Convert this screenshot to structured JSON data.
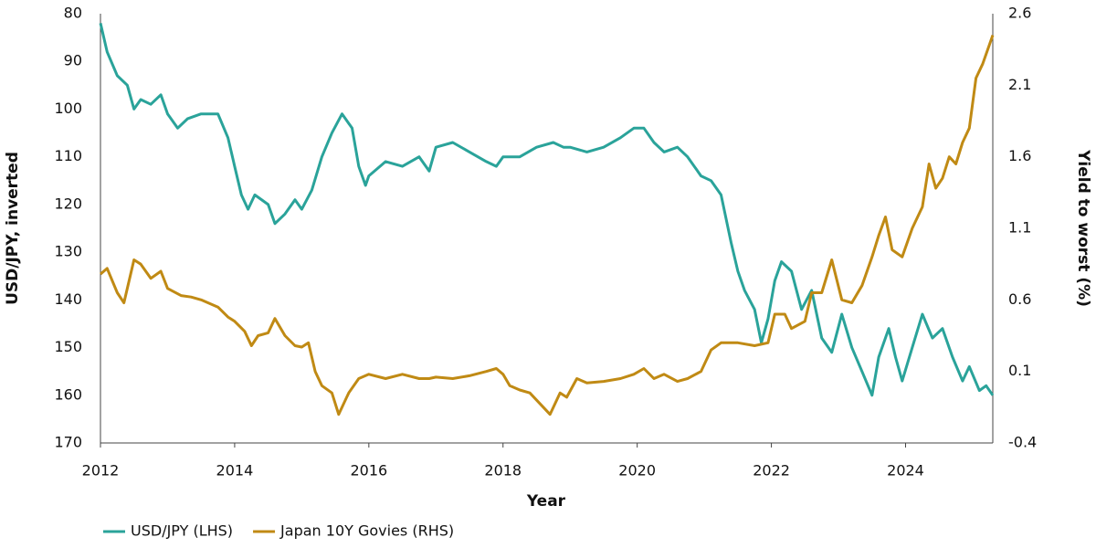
{
  "chart_data": {
    "type": "line",
    "x_label": "Year",
    "y_label": "USD/JPY, inverted",
    "y2_label": "Yield to worst (%)",
    "xlim": [
      2012,
      2025.3
    ],
    "xticks": [
      2012,
      2014,
      2016,
      2018,
      2020,
      2022,
      2024
    ],
    "ylim": [
      170,
      80
    ],
    "yticks": [
      80,
      90,
      100,
      110,
      120,
      130,
      140,
      150,
      160,
      170
    ],
    "y2lim": [
      -0.4,
      2.6
    ],
    "y2ticks": [
      -0.4,
      0.1,
      0.6,
      1.1,
      1.6,
      2.1,
      2.6
    ],
    "legend": "bottom-left",
    "series": [
      {
        "name": "USD/JPY (LHS)",
        "color": "#2aa39a",
        "x": [
          2012.0,
          2012.1,
          2012.25,
          2012.4,
          2012.5,
          2012.6,
          2012.75,
          2012.9,
          2013.0,
          2013.15,
          2013.3,
          2013.5,
          2013.75,
          2013.9,
          2014.0,
          2014.1,
          2014.2,
          2014.3,
          2014.5,
          2014.6,
          2014.75,
          2014.9,
          2015.0,
          2015.15,
          2015.3,
          2015.45,
          2015.6,
          2015.75,
          2015.85,
          2015.95,
          2016.0,
          2016.25,
          2016.5,
          2016.75,
          2016.9,
          2017.0,
          2017.25,
          2017.5,
          2017.75,
          2017.9,
          2018.0,
          2018.25,
          2018.5,
          2018.75,
          2018.9,
          2019.0,
          2019.25,
          2019.5,
          2019.75,
          2019.95,
          2020.1,
          2020.25,
          2020.4,
          2020.6,
          2020.75,
          2020.95,
          2021.1,
          2021.25,
          2021.4,
          2021.5,
          2021.6,
          2021.75,
          2021.85,
          2021.95,
          2022.05,
          2022.15,
          2022.3,
          2022.45,
          2022.6,
          2022.75,
          2022.9,
          2023.05,
          2023.2,
          2023.35,
          2023.5,
          2023.6,
          2023.75,
          2023.85,
          2023.95,
          2024.1,
          2024.25,
          2024.4,
          2024.55,
          2024.7,
          2024.85,
          2024.95,
          2025.1,
          2025.2,
          2025.3
        ],
        "values": [
          82,
          88,
          93,
          95,
          100,
          98,
          99,
          97,
          101,
          104,
          102,
          101,
          101,
          106,
          112,
          118,
          121,
          118,
          120,
          124,
          122,
          119,
          121,
          117,
          110,
          105,
          101,
          104,
          112,
          116,
          114,
          111,
          112,
          110,
          113,
          108,
          107,
          109,
          111,
          112,
          110,
          110,
          108,
          107,
          108,
          108,
          109,
          108,
          106,
          104,
          104,
          107,
          109,
          108,
          110,
          114,
          115,
          118,
          128,
          134,
          138,
          142,
          149,
          144,
          136,
          132,
          134,
          142,
          138,
          148,
          151,
          143,
          150,
          155,
          160,
          152,
          146,
          152,
          157,
          150,
          143,
          148,
          146,
          152,
          157,
          154,
          159,
          158,
          160
        ]
      },
      {
        "name": "Japan 10Y Govies (RHS)",
        "color": "#c08a14",
        "axis": "y2",
        "x": [
          2012.0,
          2012.1,
          2012.25,
          2012.35,
          2012.5,
          2012.6,
          2012.75,
          2012.9,
          2013.0,
          2013.2,
          2013.35,
          2013.5,
          2013.75,
          2013.9,
          2014.0,
          2014.15,
          2014.25,
          2014.35,
          2014.5,
          2014.6,
          2014.75,
          2014.9,
          2015.0,
          2015.1,
          2015.2,
          2015.3,
          2015.45,
          2015.55,
          2015.7,
          2015.85,
          2016.0,
          2016.25,
          2016.5,
          2016.75,
          2016.9,
          2017.0,
          2017.25,
          2017.5,
          2017.75,
          2017.9,
          2018.0,
          2018.1,
          2018.25,
          2018.4,
          2018.6,
          2018.7,
          2018.85,
          2018.95,
          2019.1,
          2019.25,
          2019.5,
          2019.75,
          2019.95,
          2020.1,
          2020.25,
          2020.4,
          2020.6,
          2020.75,
          2020.95,
          2021.1,
          2021.25,
          2021.5,
          2021.75,
          2021.95,
          2022.05,
          2022.2,
          2022.3,
          2022.5,
          2022.6,
          2022.75,
          2022.9,
          2023.05,
          2023.2,
          2023.35,
          2023.5,
          2023.6,
          2023.7,
          2023.8,
          2023.95,
          2024.1,
          2024.25,
          2024.35,
          2024.45,
          2024.55,
          2024.65,
          2024.75,
          2024.85,
          2024.95,
          2025.05,
          2025.15,
          2025.3
        ],
        "values": [
          0.78,
          0.82,
          0.65,
          0.58,
          0.88,
          0.85,
          0.75,
          0.8,
          0.68,
          0.63,
          0.62,
          0.6,
          0.55,
          0.48,
          0.45,
          0.38,
          0.28,
          0.35,
          0.37,
          0.47,
          0.35,
          0.28,
          0.27,
          0.3,
          0.1,
          0.0,
          -0.05,
          -0.2,
          -0.05,
          0.05,
          0.08,
          0.05,
          0.08,
          0.05,
          0.05,
          0.06,
          0.05,
          0.07,
          0.1,
          0.12,
          0.08,
          0.0,
          -0.03,
          -0.05,
          -0.15,
          -0.2,
          -0.05,
          -0.08,
          0.05,
          0.02,
          0.03,
          0.05,
          0.08,
          0.12,
          0.05,
          0.08,
          0.03,
          0.05,
          0.1,
          0.25,
          0.3,
          0.3,
          0.28,
          0.3,
          0.5,
          0.5,
          0.4,
          0.45,
          0.65,
          0.65,
          0.88,
          0.6,
          0.58,
          0.7,
          0.9,
          1.05,
          1.18,
          0.95,
          0.9,
          1.1,
          1.25,
          1.55,
          1.38,
          1.45,
          1.6,
          1.55,
          1.7,
          1.8,
          2.15,
          2.25,
          2.45
        ]
      }
    ]
  }
}
